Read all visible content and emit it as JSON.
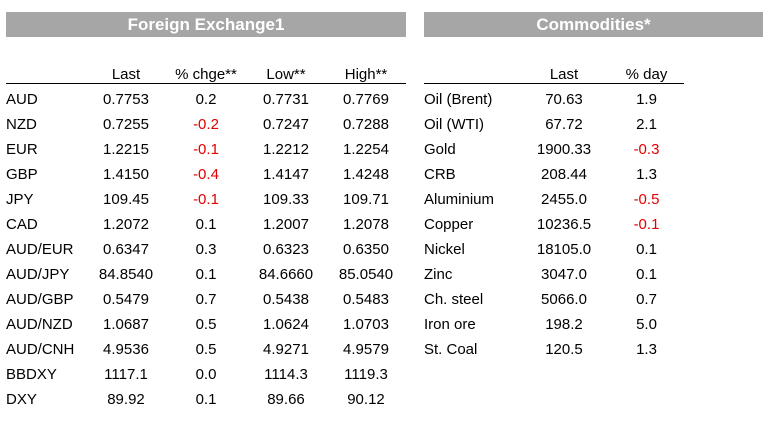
{
  "fx": {
    "title": "Foreign Exchange1",
    "columns": [
      "",
      "Last",
      "% chge**",
      "Low**",
      "High**"
    ],
    "rows": [
      {
        "label": "AUD",
        "last": "0.7753",
        "chg": "0.2",
        "low": "0.7731",
        "high": "0.7769"
      },
      {
        "label": "NZD",
        "last": "0.7255",
        "chg": "-0.2",
        "low": "0.7247",
        "high": "0.7288"
      },
      {
        "label": "EUR",
        "last": "1.2215",
        "chg": "-0.1",
        "low": "1.2212",
        "high": "1.2254"
      },
      {
        "label": "GBP",
        "last": "1.4150",
        "chg": "-0.4",
        "low": "1.4147",
        "high": "1.4248"
      },
      {
        "label": "JPY",
        "last": "109.45",
        "chg": "-0.1",
        "low": "109.33",
        "high": "109.71"
      },
      {
        "label": "CAD",
        "last": "1.2072",
        "chg": "0.1",
        "low": "1.2007",
        "high": "1.2078"
      },
      {
        "label": "AUD/EUR",
        "last": "0.6347",
        "chg": "0.3",
        "low": "0.6323",
        "high": "0.6350"
      },
      {
        "label": "AUD/JPY",
        "last": "84.8540",
        "chg": "0.1",
        "low": "84.6660",
        "high": "85.0540"
      },
      {
        "label": "AUD/GBP",
        "last": "0.5479",
        "chg": "0.7",
        "low": "0.5438",
        "high": "0.5483"
      },
      {
        "label": "AUD/NZD",
        "last": "1.0687",
        "chg": "0.5",
        "low": "1.0624",
        "high": "1.0703"
      },
      {
        "label": "AUD/CNH",
        "last": "4.9536",
        "chg": "0.5",
        "low": "4.9271",
        "high": "4.9579"
      },
      {
        "label": "BBDXY",
        "last": "1117.1",
        "chg": "0.0",
        "low": "1114.3",
        "high": "1119.3"
      },
      {
        "label": "DXY",
        "last": "89.92",
        "chg": "0.1",
        "low": "89.66",
        "high": "90.12"
      }
    ]
  },
  "commodities": {
    "title": "Commodities*",
    "columns": [
      "",
      "Last",
      "% day"
    ],
    "rows": [
      {
        "label": "Oil (Brent)",
        "last": "70.63",
        "day": "1.9"
      },
      {
        "label": "Oil (WTI)",
        "last": "67.72",
        "day": "2.1"
      },
      {
        "label": "Gold",
        "last": "1900.33",
        "day": "-0.3"
      },
      {
        "label": "CRB",
        "last": "208.44",
        "day": "1.3"
      },
      {
        "label": "Aluminium",
        "last": "2455.0",
        "day": "-0.5"
      },
      {
        "label": "Copper",
        "last": "10236.5",
        "day": "-0.1"
      },
      {
        "label": "Nickel",
        "last": "18105.0",
        "day": "0.1"
      },
      {
        "label": "Zinc",
        "last": "3047.0",
        "day": "0.1"
      },
      {
        "label": "Ch. steel",
        "last": "5066.0",
        "day": "0.7"
      },
      {
        "label": "Iron ore",
        "last": "198.2",
        "day": "5.0"
      },
      {
        "label": "St. Coal",
        "last": "120.5",
        "day": "1.3"
      }
    ]
  },
  "colors": {
    "banner_background": "#a6a6a6",
    "negative": "#e00000"
  }
}
